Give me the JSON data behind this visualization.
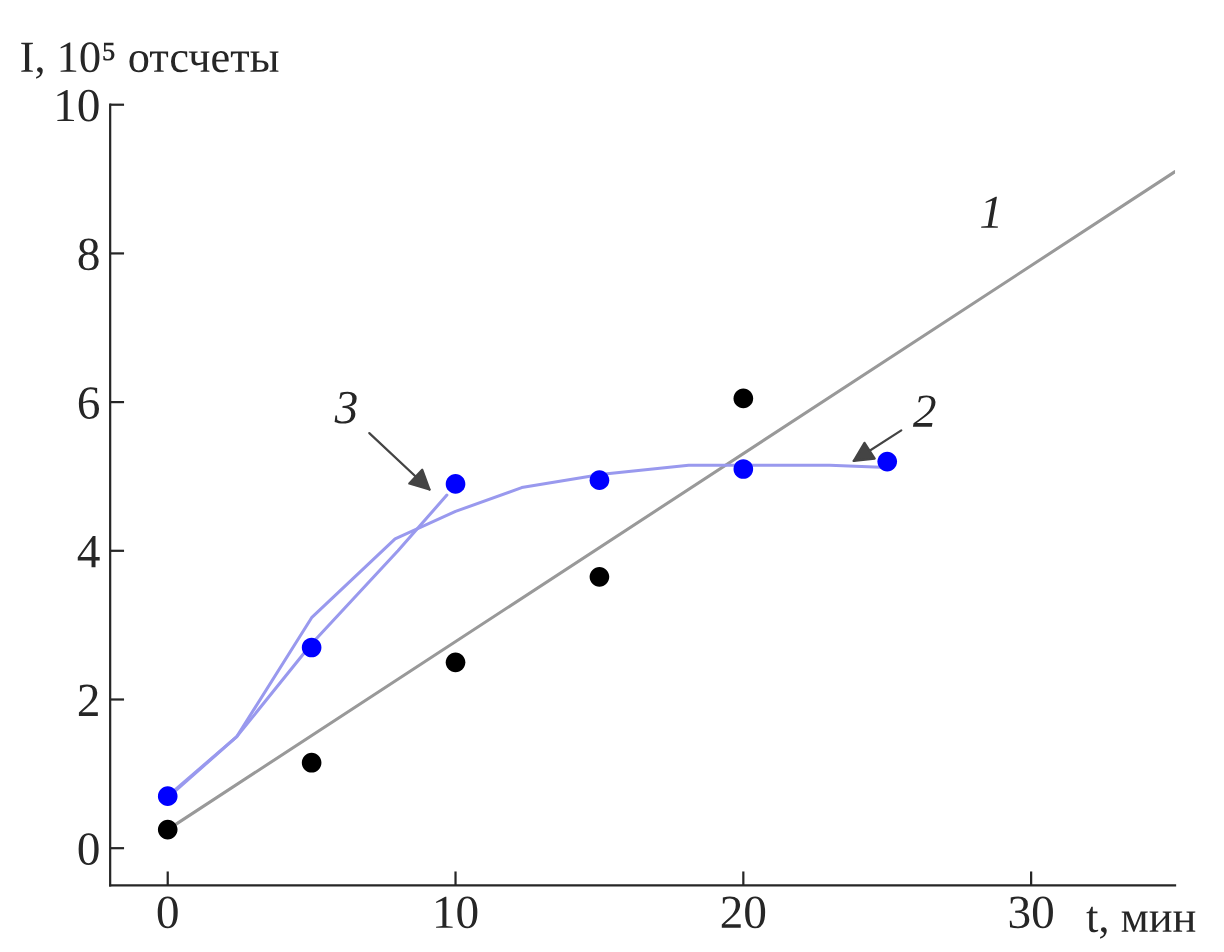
{
  "chart_data": {
    "type": "scatter",
    "xlabel": "t, мин",
    "ylabel": "I, 10⁵ отсчеты",
    "xlim": [
      -2,
      35
    ],
    "ylim": [
      -0.5,
      10
    ],
    "xticks": [
      0,
      10,
      20,
      30
    ],
    "yticks": [
      0,
      2,
      4,
      6,
      8,
      10
    ],
    "grid": false,
    "legend": false,
    "series": [
      {
        "type": "line",
        "color": "#999999",
        "x": [
          0,
          35
        ],
        "values": [
          0.25,
          9.1
        ],
        "marker": "none"
      },
      {
        "type": "line",
        "color": "#9999ee",
        "x": [
          0,
          2.4,
          5,
          7.9,
          10,
          12.3,
          15.1,
          18.1,
          20,
          23,
          25
        ],
        "values": [
          0.68,
          1.5,
          3.1,
          4.16,
          4.53,
          4.85,
          5.03,
          5.15,
          5.15,
          5.15,
          5.12
        ],
        "marker": "none"
      },
      {
        "type": "line",
        "color": "#9999ee",
        "x": [
          0,
          2.4,
          5,
          8,
          9.7
        ],
        "values": [
          0.7,
          1.5,
          2.75,
          4.0,
          4.75
        ],
        "marker": "none"
      },
      {
        "color": "#000000",
        "x": [
          0,
          5,
          10,
          15,
          20
        ],
        "values": [
          0.25,
          1.15,
          2.5,
          3.65,
          6.05
        ],
        "marker": "circle"
      },
      {
        "color": "#0000ff",
        "x": [
          0,
          5,
          10,
          15,
          20,
          25
        ],
        "values": [
          0.7,
          2.7,
          4.9,
          4.95,
          5.1,
          5.2
        ],
        "marker": "circle"
      }
    ],
    "annotations": [
      {
        "text": "1",
        "x": 29,
        "y": 7.6
      },
      {
        "text": "2",
        "x": 23.6,
        "y": 5.15
      },
      {
        "text": "3",
        "x": 9.3,
        "y": 4.75
      }
    ]
  }
}
